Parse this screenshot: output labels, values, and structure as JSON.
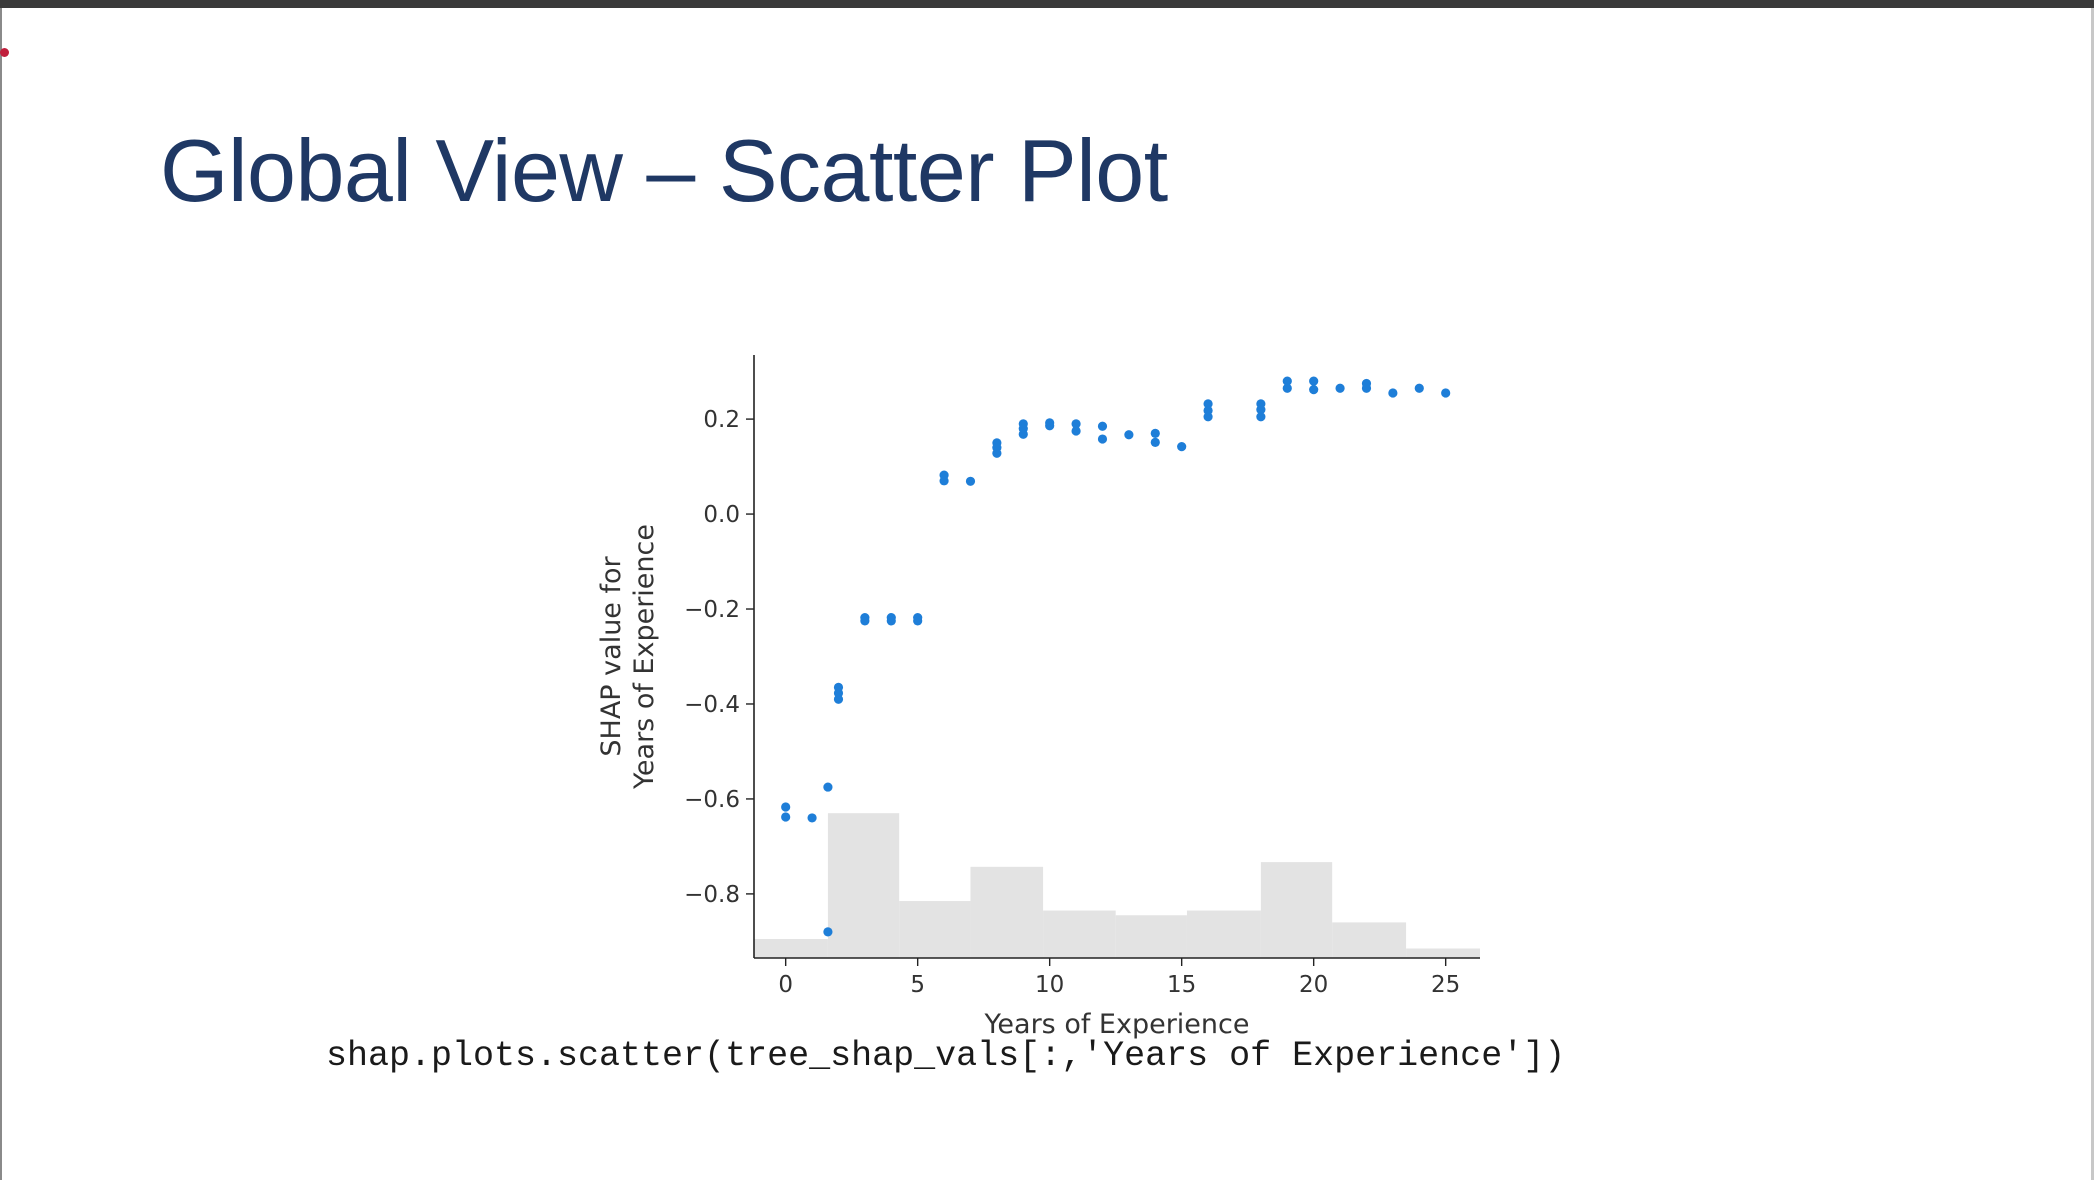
{
  "slide": {
    "title": "Global View – Scatter Plot",
    "code": "shap.plots.scatter(tree_shap_vals[:,'Years of Experience'])"
  },
  "colors": {
    "title": "#1f3864",
    "points": "#1e7ed8",
    "histogram": "#e3e3e3",
    "laser": "#c01f3c"
  },
  "chart_data": {
    "type": "scatter",
    "title": "",
    "xlabel": "Years of Experience",
    "ylabel": [
      "SHAP value for",
      "Years of Experience"
    ],
    "xlim": [
      -1.2,
      26.3
    ],
    "ylim": [
      -0.935,
      0.335
    ],
    "xticks": [
      0,
      5,
      10,
      15,
      20,
      25
    ],
    "yticks": [
      0.2,
      0.0,
      -0.2,
      -0.4,
      -0.6,
      -0.8
    ],
    "ytick_labels": [
      "0.2",
      "0.0",
      "−0.2",
      "−0.4",
      "−0.6",
      "−0.8"
    ],
    "histogram": {
      "bins": [
        {
          "x0": -1.2,
          "x1": 1.6,
          "y": -0.895
        },
        {
          "x0": 1.6,
          "x1": 4.3,
          "y": -0.63
        },
        {
          "x0": 4.3,
          "x1": 7.0,
          "y": -0.815
        },
        {
          "x0": 7.0,
          "x1": 9.75,
          "y": -0.743
        },
        {
          "x0": 9.75,
          "x1": 12.5,
          "y": -0.835
        },
        {
          "x0": 12.5,
          "x1": 15.2,
          "y": -0.845
        },
        {
          "x0": 15.2,
          "x1": 18.0,
          "y": -0.835
        },
        {
          "x0": 18.0,
          "x1": 20.7,
          "y": -0.733
        },
        {
          "x0": 20.7,
          "x1": 23.5,
          "y": -0.86
        },
        {
          "x0": 23.5,
          "x1": 26.3,
          "y": -0.915
        }
      ]
    },
    "points": [
      {
        "x": 0,
        "y": -0.617
      },
      {
        "x": 0,
        "y": -0.638
      },
      {
        "x": 1,
        "y": -0.64
      },
      {
        "x": 1.6,
        "y": -0.575
      },
      {
        "x": 1.6,
        "y": -0.88
      },
      {
        "x": 2,
        "y": -0.365
      },
      {
        "x": 2,
        "y": -0.377
      },
      {
        "x": 2,
        "y": -0.39
      },
      {
        "x": 3,
        "y": -0.218
      },
      {
        "x": 3,
        "y": -0.225
      },
      {
        "x": 4,
        "y": -0.218
      },
      {
        "x": 4,
        "y": -0.225
      },
      {
        "x": 5,
        "y": -0.218
      },
      {
        "x": 5,
        "y": -0.225
      },
      {
        "x": 6,
        "y": 0.082
      },
      {
        "x": 6,
        "y": 0.07
      },
      {
        "x": 7,
        "y": 0.069
      },
      {
        "x": 8,
        "y": 0.15
      },
      {
        "x": 8,
        "y": 0.14
      },
      {
        "x": 8,
        "y": 0.128
      },
      {
        "x": 9,
        "y": 0.19
      },
      {
        "x": 9,
        "y": 0.18
      },
      {
        "x": 9,
        "y": 0.168
      },
      {
        "x": 10,
        "y": 0.192
      },
      {
        "x": 10,
        "y": 0.186
      },
      {
        "x": 11,
        "y": 0.19
      },
      {
        "x": 11,
        "y": 0.175
      },
      {
        "x": 12,
        "y": 0.185
      },
      {
        "x": 12,
        "y": 0.158
      },
      {
        "x": 13,
        "y": 0.167
      },
      {
        "x": 14,
        "y": 0.17
      },
      {
        "x": 14,
        "y": 0.151
      },
      {
        "x": 15,
        "y": 0.142
      },
      {
        "x": 16,
        "y": 0.232
      },
      {
        "x": 16,
        "y": 0.218
      },
      {
        "x": 16,
        "y": 0.205
      },
      {
        "x": 18,
        "y": 0.232
      },
      {
        "x": 18,
        "y": 0.22
      },
      {
        "x": 18,
        "y": 0.205
      },
      {
        "x": 19,
        "y": 0.28
      },
      {
        "x": 19,
        "y": 0.265
      },
      {
        "x": 20,
        "y": 0.28
      },
      {
        "x": 20,
        "y": 0.262
      },
      {
        "x": 21,
        "y": 0.265
      },
      {
        "x": 22,
        "y": 0.275
      },
      {
        "x": 22,
        "y": 0.265
      },
      {
        "x": 23,
        "y": 0.255
      },
      {
        "x": 24,
        "y": 0.265
      },
      {
        "x": 25,
        "y": 0.255
      }
    ]
  }
}
